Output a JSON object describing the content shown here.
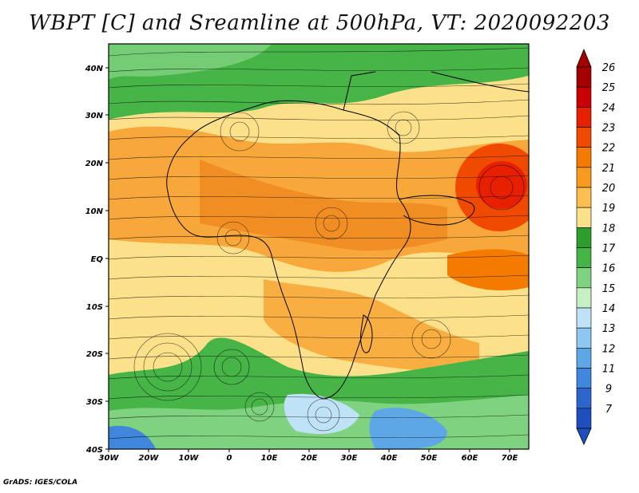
{
  "title": "WBPT [C] and Sreamline at 500hPa, VT: 2020092203",
  "credit": "GrADS: IGES/COLA",
  "lat_ticks": [
    "40N",
    "30N",
    "20N",
    "10N",
    "EQ",
    "10S",
    "20S",
    "30S",
    "40S"
  ],
  "lon_ticks": [
    "30W",
    "20W",
    "10W",
    "0",
    "10E",
    "20E",
    "30E",
    "40E",
    "50E",
    "60E",
    "70E"
  ],
  "colorbar": {
    "labels": [
      "26",
      "25",
      "24",
      "23",
      "22",
      "21",
      "20",
      "19",
      "18",
      "17",
      "16",
      "15",
      "14",
      "13",
      "12",
      "11",
      "9",
      "7"
    ],
    "colors": [
      "#a50000",
      "#c80000",
      "#e62000",
      "#f04a00",
      "#f57a00",
      "#f89a20",
      "#fbbe50",
      "#fde08a",
      "#2e9d2e",
      "#46b446",
      "#7fd27f",
      "#c4f0c4",
      "#bfe2f7",
      "#8ec8f0",
      "#5ea7e6",
      "#3f86dc",
      "#2c66cc",
      "#1f4fbf"
    ]
  }
}
